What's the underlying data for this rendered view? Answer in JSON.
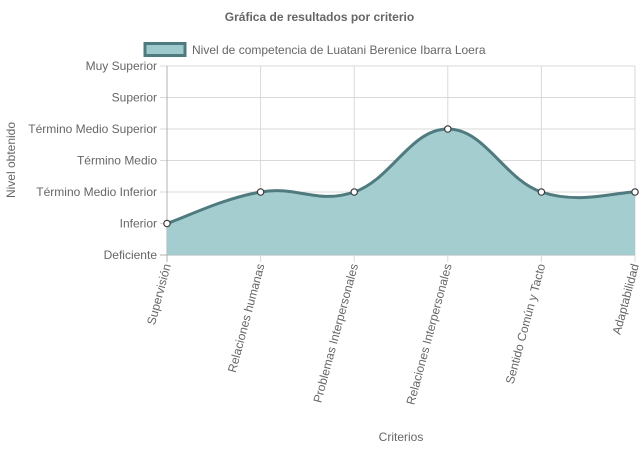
{
  "chart_data": {
    "type": "area",
    "title": "Gráfica de resultados por criterio",
    "xlabel": "Criterios",
    "ylabel": "Nivel obtenido",
    "categories": [
      "Supervisión",
      "Relaciones humanas",
      "Problemas Interpersonales",
      "Relaciones Interpersonales",
      "Sentido Común y Tacto",
      "Adaptabilidad"
    ],
    "y_levels": [
      "Deficiente",
      "Inferior",
      "Término Medio Inferior",
      "Término Medio",
      "Término Medio Superior",
      "Superior",
      "Muy Superior"
    ],
    "ylim": [
      0,
      6
    ],
    "series": [
      {
        "name": "Nivel de competencia de Luatani Berenice Ibarra Loera",
        "values": [
          1,
          2,
          2,
          4,
          2,
          2
        ]
      }
    ],
    "legend_position": "top-center",
    "grid": true,
    "colors": {
      "fill": "#9fcacd",
      "line": "#4f7a7e",
      "grid": "#d9d9d9",
      "zero_line": "#b0b0b0",
      "text": "#666666"
    }
  }
}
